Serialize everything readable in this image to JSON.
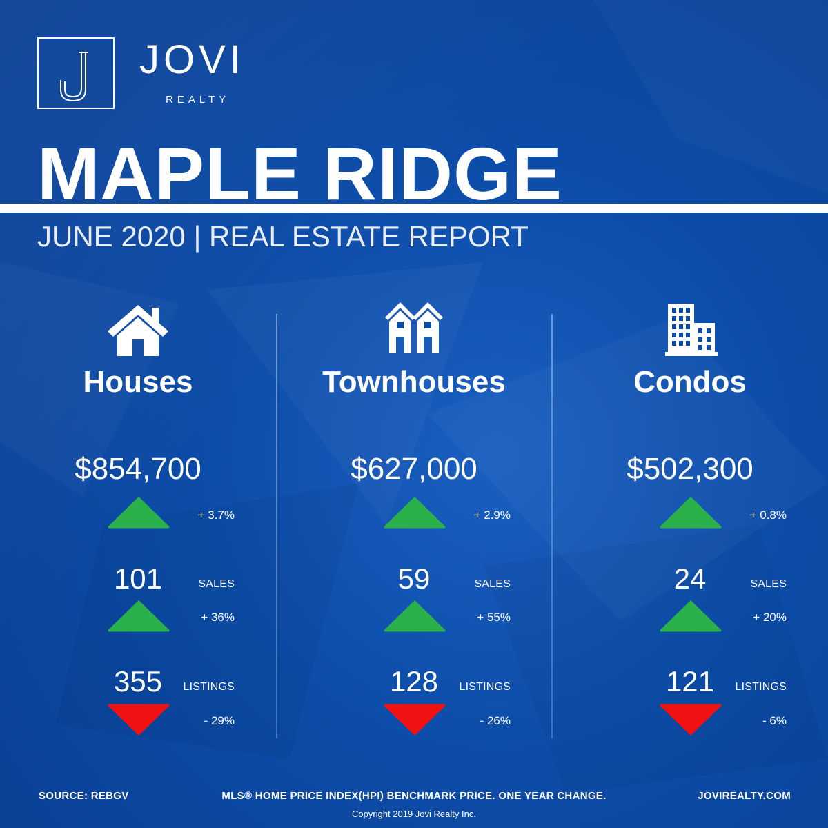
{
  "brand": {
    "name": "JOVI",
    "sub": "REALTY",
    "logo_letter": "J"
  },
  "title": "MAPLE RIDGE",
  "subtitle": "JUNE 2020 | REAL ESTATE REPORT",
  "colors": {
    "background": "#0b4aa5",
    "up": "#2bb14b",
    "down": "#f01212",
    "text": "#ffffff"
  },
  "columns": [
    {
      "name": "Houses",
      "icon": "house-icon",
      "price": "$854,700",
      "price_change": "+ 3.7%",
      "price_trend": "up",
      "sales": "101",
      "sales_label": "SALES",
      "sales_change": "+ 36%",
      "sales_trend": "up",
      "listings": "355",
      "listings_label": "LISTINGS",
      "listings_change": "- 29%",
      "listings_trend": "down"
    },
    {
      "name": "Townhouses",
      "icon": "townhouse-icon",
      "price": "$627,000",
      "price_change": "+ 2.9%",
      "price_trend": "up",
      "sales": "59",
      "sales_label": "SALES",
      "sales_change": "+ 55%",
      "sales_trend": "up",
      "listings": "128",
      "listings_label": "LISTINGS",
      "listings_change": "- 26%",
      "listings_trend": "down"
    },
    {
      "name": "Condos",
      "icon": "condo-building-icon",
      "price": "$502,300",
      "price_change": "+ 0.8%",
      "price_trend": "up",
      "sales": "24",
      "sales_label": "SALES",
      "sales_change": "+ 20%",
      "sales_trend": "up",
      "listings": "121",
      "listings_label": "LISTINGS",
      "listings_change": "- 6%",
      "listings_trend": "down"
    }
  ],
  "footer": {
    "source": "SOURCE:  REBGV",
    "note": "MLS® HOME PRICE INDEX(HPI) BENCHMARK PRICE. ONE YEAR CHANGE.",
    "website": "JOVIREALTY.COM",
    "copyright": "Copyright 2019 Jovi Realty Inc."
  }
}
